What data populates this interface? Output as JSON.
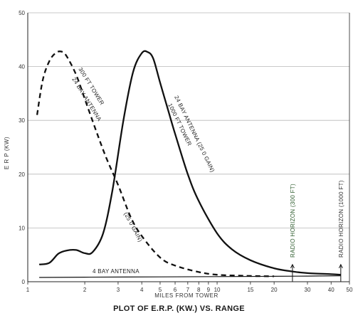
{
  "chart_data": {
    "type": "line",
    "title": "PLOT OF E.R.P. (KW.) VS. RANGE",
    "xlabel": "MILES FROM TOWER",
    "ylabel": "E R P (KW)",
    "x_scale": "log",
    "xlim": [
      1,
      50
    ],
    "ylim": [
      0,
      50
    ],
    "x_ticks": [
      "1",
      "2",
      "3",
      "4",
      "5",
      "6",
      "7",
      "8",
      "9",
      "10",
      "15",
      "20",
      "30",
      "40",
      "50"
    ],
    "y_ticks": [
      "0",
      "10",
      "20",
      "30",
      "40",
      "50"
    ],
    "grid": "horizontal",
    "series": [
      {
        "name": "300 FT TOWER 24 BAY ANTENNA (25.0 GAIN)",
        "style": "dashed",
        "x": [
          1.12,
          1.2,
          1.3,
          1.4,
          1.5,
          1.6,
          1.8,
          2.0,
          2.3,
          2.6,
          3.0,
          3.5,
          4.0,
          5.0,
          6.0,
          8.0,
          10,
          14,
          20
        ],
        "y": [
          31,
          37.5,
          41,
          42.5,
          42.8,
          42,
          38.5,
          34,
          28,
          23,
          18,
          12,
          8.5,
          4.5,
          3,
          1.8,
          1.3,
          1.1,
          1.0
        ]
      },
      {
        "name": "24 BAY ANTENNA (25.0 GAIN) 1000 FT TOWER",
        "style": "solid",
        "x": [
          1.15,
          1.3,
          1.45,
          1.6,
          1.8,
          2.0,
          2.2,
          2.5,
          2.8,
          3.2,
          3.6,
          4.0,
          4.3,
          4.6,
          5.0,
          5.5,
          6.0,
          7.0,
          8.0,
          10,
          12,
          15,
          20,
          25,
          30,
          40,
          45
        ],
        "y": [
          3.2,
          3.5,
          5.2,
          5.8,
          5.9,
          5.3,
          5.5,
          9,
          17,
          30,
          39,
          42.5,
          42.7,
          41.5,
          37,
          32,
          27.5,
          20,
          15,
          9,
          6,
          4,
          2.5,
          1.9,
          1.6,
          1.4,
          1.3
        ]
      },
      {
        "name": "4 BAY ANTENNA",
        "style": "solid-thin",
        "x": [
          1.15,
          2,
          5,
          10,
          20,
          30,
          45
        ],
        "y": [
          0.8,
          0.85,
          0.9,
          0.95,
          1.0,
          1.05,
          1.1
        ]
      }
    ],
    "annotations": [
      {
        "text": "RADIO HORIZON (300 FT)",
        "x": 25,
        "color": "#2f5d2f"
      },
      {
        "text": "RADIO HORIZON (1000 FT)",
        "x": 45,
        "color": "#333333"
      }
    ]
  }
}
